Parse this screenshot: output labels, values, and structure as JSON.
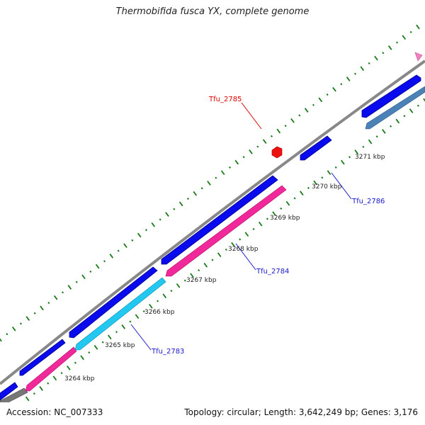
{
  "title": "Thermobifida fusca YX, complete genome",
  "footer": {
    "accession": "Accession: NC_007333",
    "summary": "Topology: circular; Length: 3,642,249 bp; Genes: 3,176"
  },
  "ruler": {
    "labels": [
      "3264 kbp",
      "3265 kbp",
      "3266 kbp",
      "3267 kbp",
      "3268 kbp",
      "3269 kbp",
      "3270 kbp",
      "3271 kbp"
    ],
    "tick_color": "#1a7a1a"
  },
  "genes": [
    {
      "name": "Tfu_2785",
      "color": "#dd0000"
    },
    {
      "name": "Tfu_2786",
      "color": "#1a1acc"
    },
    {
      "name": "Tfu_2784",
      "color": "#1a1acc"
    },
    {
      "name": "Tfu_2783",
      "color": "#1a1acc"
    }
  ],
  "colors": {
    "backbone": "#8a8a8a",
    "cds_forward": "#0a0aee",
    "cds_reverse_pink": "#f0289a",
    "cds_reverse_cyan": "#22c8f0",
    "cds_steel": "#4a82b8",
    "gray_feature": "#777777",
    "marker_red": "#ee1111",
    "marker_pink": "#f080c0"
  }
}
